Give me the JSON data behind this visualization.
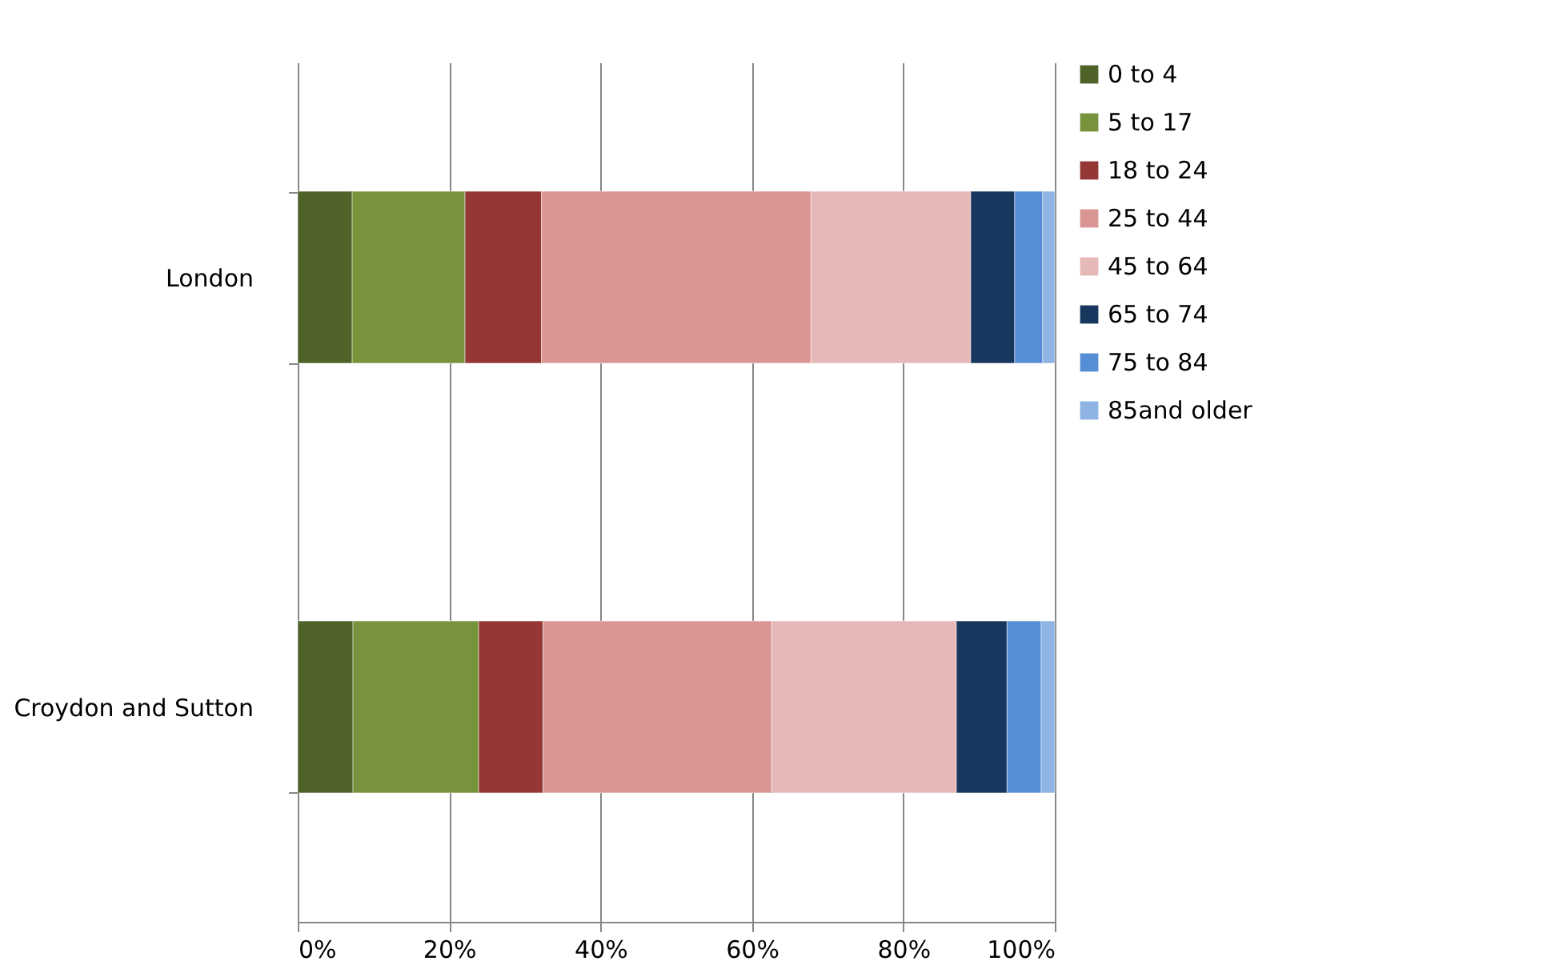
{
  "chart_data": {
    "type": "bar",
    "orientation": "horizontal",
    "stacked": true,
    "categories": [
      "London",
      "Croydon and Sutton"
    ],
    "series": [
      {
        "name": "0 to 4",
        "color": "#4f6228",
        "values": [
          7.2,
          7.3
        ]
      },
      {
        "name": "5 to 17",
        "color": "#77933c",
        "values": [
          14.9,
          16.6
        ]
      },
      {
        "name": "18 to 24",
        "color": "#953735",
        "values": [
          10.1,
          8.5
        ]
      },
      {
        "name": "25 to 44",
        "color": "#d99694",
        "values": [
          35.6,
          30.2
        ]
      },
      {
        "name": "45 to 64",
        "color": "#e6b9b8",
        "values": [
          21.1,
          24.4
        ]
      },
      {
        "name": "65 to 74",
        "color": "#17375e",
        "values": [
          5.8,
          6.7
        ]
      },
      {
        "name": "75 to 84",
        "color": "#558ed5",
        "values": [
          3.7,
          4.5
        ]
      },
      {
        "name": "85and older",
        "color": "#8eb4e3",
        "values": [
          1.6,
          1.8
        ]
      }
    ],
    "xlim": [
      0,
      100
    ],
    "xticks": [
      {
        "value": 0,
        "label": "0%"
      },
      {
        "value": 20,
        "label": "20%"
      },
      {
        "value": 40,
        "label": "40%"
      },
      {
        "value": 60,
        "label": "60%"
      },
      {
        "value": 80,
        "label": "80%"
      },
      {
        "value": 100,
        "label": "100%"
      }
    ],
    "grid": "x",
    "legend": "right"
  }
}
